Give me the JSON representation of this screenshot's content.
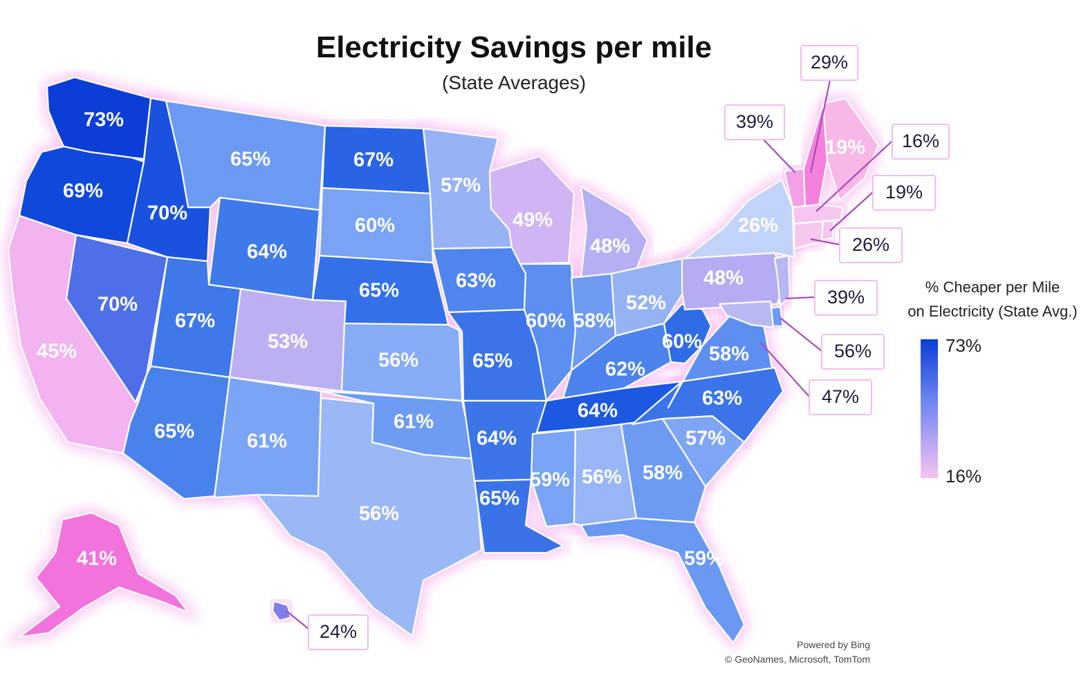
{
  "title": "Electricity Savings per mile",
  "subtitle": "(State Averages)",
  "legend": {
    "title_line1": "% Cheaper per Mile",
    "title_line2": "on Electricity (State Avg.)",
    "max_label": "73%",
    "min_label": "16%",
    "max_color": "#0b3ed6",
    "mid_color": "#6f86f2",
    "min_color": "#f7c2f1"
  },
  "credits": {
    "line1": "Powered by Bing",
    "line2": "© GeoNames, Microsoft, TomTom"
  },
  "states": [
    {
      "id": "WA",
      "label": "73%",
      "value": 73,
      "color": "#0b3ed6"
    },
    {
      "id": "OR",
      "label": "69%",
      "value": 69,
      "color": "#1148dc"
    },
    {
      "id": "CA",
      "label": "45%",
      "value": 45,
      "color": "#f2b3f0"
    },
    {
      "id": "NV",
      "label": "70%",
      "value": 70,
      "color": "#4f6fe9"
    },
    {
      "id": "ID",
      "label": "70%",
      "value": 70,
      "color": "#1a52df"
    },
    {
      "id": "MT",
      "label": "65%",
      "value": 65,
      "color": "#6c9af3"
    },
    {
      "id": "WY",
      "label": "64%",
      "value": 64,
      "color": "#3f7aea"
    },
    {
      "id": "UT",
      "label": "67%",
      "value": 67,
      "color": "#3e78e9"
    },
    {
      "id": "AZ",
      "label": "65%",
      "value": 65,
      "color": "#4a82ec"
    },
    {
      "id": "CO",
      "label": "53%",
      "value": 53,
      "color": "#bdb0f2"
    },
    {
      "id": "NM",
      "label": "61%",
      "value": 61,
      "color": "#7aa5f5"
    },
    {
      "id": "ND",
      "label": "67%",
      "value": 67,
      "color": "#2a64e4"
    },
    {
      "id": "SD",
      "label": "60%",
      "value": 60,
      "color": "#7aa3f4"
    },
    {
      "id": "NE",
      "label": "65%",
      "value": 65,
      "color": "#3470e7"
    },
    {
      "id": "KS",
      "label": "56%",
      "value": 56,
      "color": "#86acf6"
    },
    {
      "id": "OK",
      "label": "61%",
      "value": 61,
      "color": "#6e9cf3"
    },
    {
      "id": "TX",
      "label": "56%",
      "value": 56,
      "color": "#9ab7f6"
    },
    {
      "id": "MN",
      "label": "57%",
      "value": 57,
      "color": "#98b3f5"
    },
    {
      "id": "IA",
      "label": "63%",
      "value": 63,
      "color": "#4f85ec"
    },
    {
      "id": "MO",
      "label": "65%",
      "value": 65,
      "color": "#3b74e8"
    },
    {
      "id": "AR",
      "label": "64%",
      "value": 64,
      "color": "#3c75e8"
    },
    {
      "id": "LA",
      "label": "65%",
      "value": 65,
      "color": "#3a73e7"
    },
    {
      "id": "WI",
      "label": "49%",
      "value": 49,
      "color": "#d0b4f4"
    },
    {
      "id": "IL",
      "label": "60%",
      "value": 60,
      "color": "#5d8ff0"
    },
    {
      "id": "MI",
      "label": "48%",
      "value": 48,
      "color": "#b5b0f3"
    },
    {
      "id": "IN",
      "label": "58%",
      "value": 58,
      "color": "#6f9bf2"
    },
    {
      "id": "OH",
      "label": "52%",
      "value": 52,
      "color": "#95b2f5"
    },
    {
      "id": "KY",
      "label": "62%",
      "value": 62,
      "color": "#4c83ec"
    },
    {
      "id": "TN",
      "label": "64%",
      "value": 64,
      "color": "#1d58e0"
    },
    {
      "id": "MS",
      "label": "59%",
      "value": 59,
      "color": "#79a3f4"
    },
    {
      "id": "AL",
      "label": "56%",
      "value": 56,
      "color": "#98b5f6"
    },
    {
      "id": "GA",
      "label": "58%",
      "value": 58,
      "color": "#6e9bf2"
    },
    {
      "id": "FL",
      "label": "59%",
      "value": 59,
      "color": "#6a98f2"
    },
    {
      "id": "SC",
      "label": "57%",
      "value": 57,
      "color": "#7fa6f4"
    },
    {
      "id": "NC",
      "label": "63%",
      "value": 63,
      "color": "#3a74e8"
    },
    {
      "id": "VA",
      "label": "58%",
      "value": 58,
      "color": "#5e8ff0"
    },
    {
      "id": "WV",
      "label": "60%",
      "value": 60,
      "color": "#2f6ce6"
    },
    {
      "id": "PA",
      "label": "48%",
      "value": 48,
      "color": "#b5acf3"
    },
    {
      "id": "NY",
      "label": "26%",
      "value": 26,
      "color": "#c2d3fa"
    },
    {
      "id": "ME",
      "label": "19%",
      "value": 19,
      "color": "#f7b8e6"
    },
    {
      "id": "AK",
      "label": "41%",
      "value": 41,
      "color": "#f373dc"
    },
    {
      "id": "HI",
      "label": "",
      "value": 24,
      "color": "#7f80ea"
    }
  ],
  "callouts": [
    {
      "id": "NH",
      "label": "29%",
      "value": 29,
      "color": "#f580dc"
    },
    {
      "id": "VT",
      "label": "39%",
      "value": 39,
      "color": "#f3a0e6"
    },
    {
      "id": "MA",
      "label": "16%",
      "value": 16,
      "color": "#f6c6ee"
    },
    {
      "id": "RI",
      "label": "19%",
      "value": 19,
      "color": "#f6c6ee"
    },
    {
      "id": "CT",
      "label": "26%",
      "value": 26,
      "color": "#f7c8ee"
    },
    {
      "id": "NJ",
      "label": "39%",
      "value": 39,
      "color": "#b7b7f4"
    },
    {
      "id": "DE",
      "label": "56%",
      "value": 56,
      "color": "#6e9cf2"
    },
    {
      "id": "MD",
      "label": "47%",
      "value": 47,
      "color": "#b9b9f3"
    },
    {
      "id": "HI",
      "label": "24%",
      "value": 24,
      "color": "#7f80ea"
    }
  ]
}
